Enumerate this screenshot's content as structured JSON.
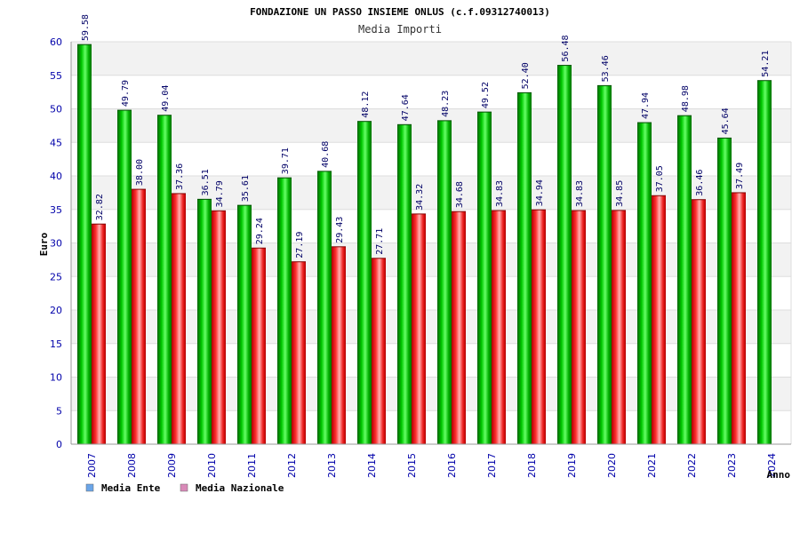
{
  "chart_data": {
    "type": "bar",
    "title": "FONDAZIONE UN PASSO INSIEME ONLUS (c.f.09312740013)",
    "subtitle": "Media Importi",
    "ylabel": "Euro",
    "xlabel": "Anno",
    "ylim": [
      0,
      60
    ],
    "yticks": [
      0,
      5,
      10,
      15,
      20,
      25,
      30,
      35,
      40,
      45,
      50,
      55,
      60
    ],
    "grid": true,
    "legend_position": "bottom-left",
    "categories": [
      "2007",
      "2008",
      "2009",
      "2010",
      "2011",
      "2012",
      "2013",
      "2014",
      "2015",
      "2016",
      "2017",
      "2018",
      "2019",
      "2020",
      "2021",
      "2022",
      "2023",
      "2024"
    ],
    "series": [
      {
        "name": "Media Ente",
        "color": "#00b000",
        "legend_color": "#6aa5e8",
        "values": [
          59.58,
          49.79,
          49.04,
          36.51,
          35.61,
          39.71,
          40.68,
          48.12,
          47.64,
          48.23,
          49.52,
          52.4,
          56.48,
          53.46,
          47.94,
          48.98,
          45.64,
          54.21
        ],
        "labels": [
          "59.58",
          "49.79",
          "49.04",
          "36.51",
          "35.61",
          "39.71",
          "40.68",
          "48.12",
          "47.64",
          "48.23",
          "49.52",
          "52.40",
          "56.48",
          "53.46",
          "47.94",
          "48.98",
          "45.64",
          "54.21"
        ]
      },
      {
        "name": "Media Nazionale",
        "color": "#e81818",
        "legend_color": "#d98ab8",
        "values": [
          32.82,
          38.0,
          37.36,
          34.79,
          29.24,
          27.19,
          29.43,
          27.71,
          34.32,
          34.68,
          34.83,
          34.94,
          34.83,
          34.85,
          37.05,
          36.46,
          37.49,
          null
        ],
        "labels": [
          "32.82",
          "38.00",
          "37.36",
          "34.79",
          "29.24",
          "27.19",
          "29.43",
          "27.71",
          "34.32",
          "34.68",
          "34.83",
          "34.94",
          "34.83",
          "34.85",
          "37.05",
          "36.46",
          "37.49",
          null
        ]
      }
    ]
  }
}
